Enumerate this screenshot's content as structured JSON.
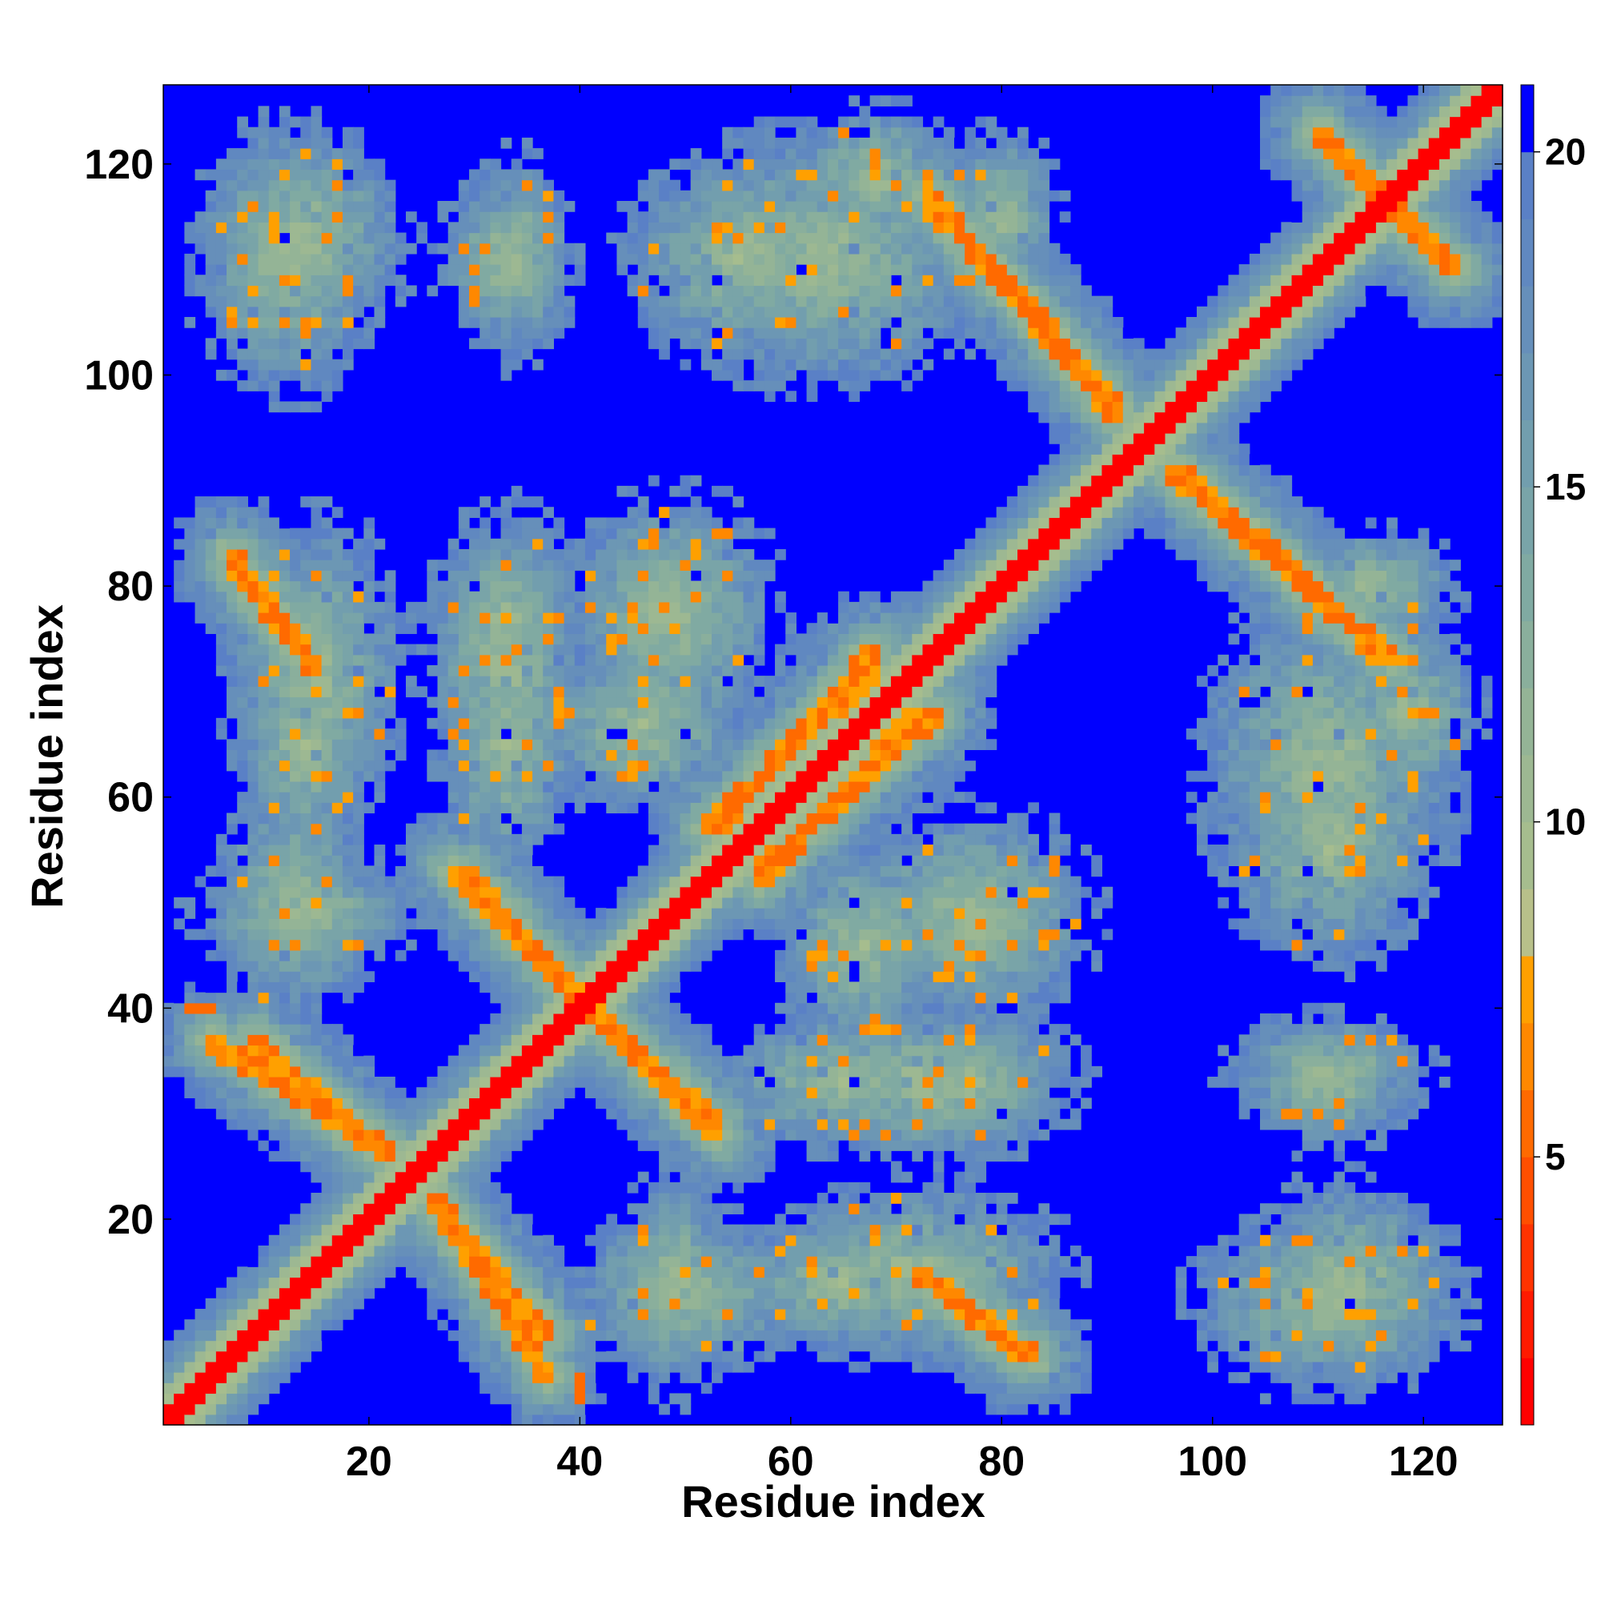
{
  "chart_data": {
    "type": "heatmap",
    "title": "",
    "xlabel": "Residue index",
    "ylabel": "Residue index",
    "x_range": [
      1,
      127
    ],
    "y_range": [
      1,
      127
    ],
    "x_ticks": [
      20,
      40,
      60,
      80,
      100,
      120
    ],
    "y_ticks": [
      20,
      40,
      60,
      80,
      100,
      120
    ],
    "colorbar": {
      "range": [
        1,
        21
      ],
      "ticks": [
        5,
        10,
        15,
        20
      ],
      "bands": [
        {
          "from": 1,
          "to": 2,
          "color": "#ff0000"
        },
        {
          "from": 2,
          "to": 3,
          "color": "#ff1a00"
        },
        {
          "from": 3,
          "to": 4,
          "color": "#ff3300"
        },
        {
          "from": 4,
          "to": 5,
          "color": "#ff4f00"
        },
        {
          "from": 5,
          "to": 6,
          "color": "#ff6a00"
        },
        {
          "from": 6,
          "to": 7,
          "color": "#ff8800"
        },
        {
          "from": 7,
          "to": 8,
          "color": "#ffa000"
        },
        {
          "from": 8,
          "to": 9,
          "color": "#b8c08a"
        },
        {
          "from": 9,
          "to": 10,
          "color": "#a6bd8e"
        },
        {
          "from": 10,
          "to": 11,
          "color": "#9db892"
        },
        {
          "from": 11,
          "to": 12,
          "color": "#94b496"
        },
        {
          "from": 12,
          "to": 13,
          "color": "#8aaf9c"
        },
        {
          "from": 13,
          "to": 14,
          "color": "#80aaa2"
        },
        {
          "from": 14,
          "to": 15,
          "color": "#79a4a8"
        },
        {
          "from": 15,
          "to": 16,
          "color": "#729eae"
        },
        {
          "from": 16,
          "to": 17,
          "color": "#6c97b4"
        },
        {
          "from": 17,
          "to": 18,
          "color": "#668fba"
        },
        {
          "from": 18,
          "to": 19,
          "color": "#6088c0"
        },
        {
          "from": 19,
          "to": 20,
          "color": "#5a80c6"
        },
        {
          "from": 20,
          "to": 21,
          "color": "#0000ff"
        }
      ]
    },
    "background_value": 21,
    "diagonal_value": 1,
    "contact_bands": [
      {
        "x1": 5,
        "y1": 37,
        "x2": 22,
        "y2": 26
      },
      {
        "x1": 26,
        "y1": 22,
        "x2": 37,
        "y2": 9
      },
      {
        "x1": 29,
        "y1": 53,
        "x2": 40,
        "y2": 41
      },
      {
        "x1": 42,
        "y1": 39,
        "x2": 53,
        "y2": 28
      },
      {
        "x1": 7,
        "y1": 83,
        "x2": 15,
        "y2": 72
      },
      {
        "x1": 73,
        "y1": 117,
        "x2": 91,
        "y2": 96
      },
      {
        "x1": 97,
        "y1": 91,
        "x2": 117,
        "y2": 73
      },
      {
        "x1": 72,
        "y1": 15,
        "x2": 82,
        "y2": 7
      },
      {
        "x1": 53,
        "y1": 57,
        "x2": 68,
        "y2": 74
      },
      {
        "x1": 57,
        "y1": 52,
        "x2": 72,
        "y2": 68
      },
      {
        "x1": 110,
        "y1": 123,
        "x2": 123,
        "y2": 110
      }
    ],
    "contact_patches": [
      {
        "x": 14,
        "y": 113,
        "rx": 9,
        "ry": 9
      },
      {
        "x": 33,
        "y": 111,
        "rx": 6,
        "ry": 7
      },
      {
        "x": 56,
        "y": 111,
        "rx": 11,
        "ry": 9
      },
      {
        "x": 68,
        "y": 119,
        "rx": 7,
        "ry": 6
      },
      {
        "x": 15,
        "y": 72,
        "rx": 8,
        "ry": 13
      },
      {
        "x": 33,
        "y": 73,
        "rx": 7,
        "ry": 13
      },
      {
        "x": 49,
        "y": 77,
        "rx": 9,
        "ry": 11
      },
      {
        "x": 14,
        "y": 49,
        "rx": 10,
        "ry": 5
      },
      {
        "x": 67,
        "y": 46,
        "rx": 8,
        "ry": 9
      },
      {
        "x": 78,
        "y": 48,
        "rx": 8,
        "ry": 8
      },
      {
        "x": 65,
        "y": 33,
        "rx": 11,
        "ry": 6
      },
      {
        "x": 78,
        "y": 33,
        "rx": 7,
        "ry": 6
      },
      {
        "x": 50,
        "y": 13,
        "rx": 10,
        "ry": 7
      },
      {
        "x": 65,
        "y": 14,
        "rx": 10,
        "ry": 6
      },
      {
        "x": 111,
        "y": 63,
        "rx": 11,
        "ry": 15
      },
      {
        "x": 111,
        "y": 34,
        "rx": 9,
        "ry": 5
      },
      {
        "x": 111,
        "y": 12,
        "rx": 12,
        "ry": 8
      },
      {
        "x": 115,
        "y": 80,
        "rx": 8,
        "ry": 5
      }
    ],
    "isolated_cells": [
      {
        "x": 3,
        "y": 40,
        "value": 5
      },
      {
        "x": 4,
        "y": 40,
        "value": 5
      },
      {
        "x": 5,
        "y": 40,
        "value": 5
      },
      {
        "x": 40,
        "y": 3,
        "value": 5
      },
      {
        "x": 40,
        "y": 4,
        "value": 5
      },
      {
        "x": 40,
        "y": 5,
        "value": 5
      },
      {
        "x": 9,
        "y": 105,
        "value": 7
      },
      {
        "x": 6,
        "y": 35,
        "value": 6
      }
    ],
    "legend": "none"
  }
}
